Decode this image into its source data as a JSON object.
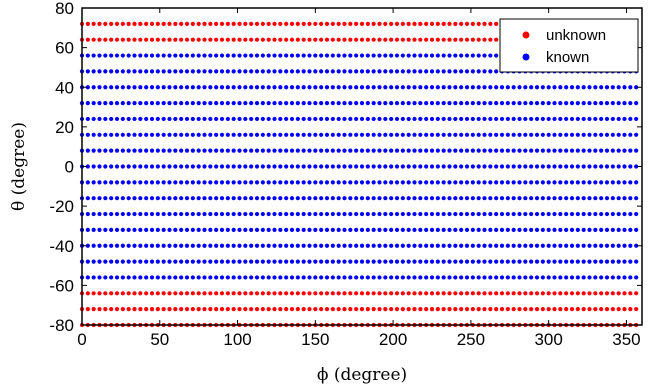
{
  "chart_data": {
    "type": "scatter",
    "xlabel": "ϕ (degree)",
    "ylabel": "θ (degree)",
    "xlim": [
      0,
      360
    ],
    "ylim": [
      -80,
      80
    ],
    "x_ticks": [
      0,
      50,
      100,
      150,
      200,
      250,
      300,
      350
    ],
    "y_ticks": [
      -80,
      -60,
      -40,
      -20,
      0,
      20,
      40,
      60,
      80
    ],
    "grid": false,
    "legend_position": "top-right",
    "x_grid": {
      "start": 0,
      "end": 356.25,
      "step": 3.75
    },
    "series": [
      {
        "name": "unknown",
        "color": "#ff0000",
        "theta_values": [
          -80,
          -72,
          -64,
          64,
          72
        ]
      },
      {
        "name": "known",
        "color": "#0000ff",
        "theta_values": [
          -56,
          -48,
          -40,
          -32,
          -24,
          -16,
          -8,
          0,
          8,
          16,
          24,
          32,
          40,
          48,
          56
        ]
      }
    ]
  }
}
